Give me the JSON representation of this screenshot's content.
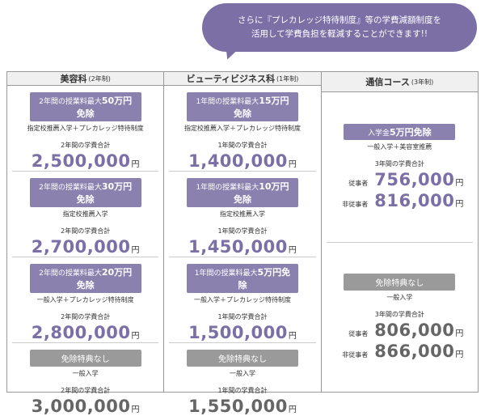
{
  "callout": {
    "lines": [
      "さらに『プレカレッジ特待制度』等の学費減額制度を",
      "活用して学費負担を軽減することができます!!"
    ]
  },
  "columns": [
    {
      "title": "美容科",
      "duration": "(2年制)",
      "cells": [
        {
          "badge_prefix": "2年間の授業料最大",
          "badge_highlight": "50万円免除",
          "condition": "指定校推薦入学＋プレカレッジ特待制度",
          "total_label": "2年間の学費合計",
          "amount": "2,500,000",
          "unit": "円"
        },
        {
          "badge_prefix": "2年間の授業料最大",
          "badge_highlight": "30万円免除",
          "condition": "指定校推薦入学",
          "total_label": "2年間の学費合計",
          "amount": "2,700,000",
          "unit": "円"
        },
        {
          "badge_prefix": "2年間の授業料最大",
          "badge_highlight": "20万円免除",
          "condition": "一般入学＋プレカレッジ特待制度",
          "total_label": "2年間の学費合計",
          "amount": "2,800,000",
          "unit": "円"
        },
        {
          "badge_prefix": "免除特典なし",
          "condition": "一般入学",
          "total_label": "2年間の学費合計",
          "amount": "3,000,000",
          "unit": "円"
        }
      ]
    },
    {
      "title": "ビューティビジネス科",
      "duration": "(1年制)",
      "cells": [
        {
          "badge_prefix": "1年間の授業料最大",
          "badge_highlight": "15万円免除",
          "condition": "指定校推薦入学＋プレカレッジ特待制度",
          "total_label": "1年間の学費合計",
          "amount": "1,400,000",
          "unit": "円"
        },
        {
          "badge_prefix": "1年間の授業料最大",
          "badge_highlight": "10万円免除",
          "condition": "指定校推薦入学",
          "total_label": "1年間の学費合計",
          "amount": "1,450,000",
          "unit": "円"
        },
        {
          "badge_prefix": "1年間の授業料最大",
          "badge_highlight": "5万円免除",
          "condition": "一般入学＋プレカレッジ特待制度",
          "total_label": "1年間の学費合計",
          "amount": "1,500,000",
          "unit": "円"
        },
        {
          "badge_prefix": "免除特典なし",
          "condition": "一般入学",
          "total_label": "1年間の学費合計",
          "amount": "1,550,000",
          "unit": "円"
        }
      ]
    },
    {
      "title": "通信コース",
      "duration": "(3年制)",
      "cells": [
        {
          "badge_prefix": "入学金",
          "badge_highlight": "5万円免除",
          "condition": "一般入学＋美容室推薦",
          "total_label": "3年間の学費合計",
          "prices": [
            {
              "label": "従事者",
              "amount": "756,000",
              "unit": "円"
            },
            {
              "label": "非従事者",
              "amount": "816,000",
              "unit": "円"
            }
          ]
        },
        {
          "badge_prefix": "免除特典なし",
          "condition": "一般入学",
          "total_label": "3年間の学費合計",
          "prices": [
            {
              "label": "従事者",
              "amount": "806,000",
              "unit": "円"
            },
            {
              "label": "非従事者",
              "amount": "866,000",
              "unit": "円"
            }
          ]
        }
      ]
    }
  ]
}
